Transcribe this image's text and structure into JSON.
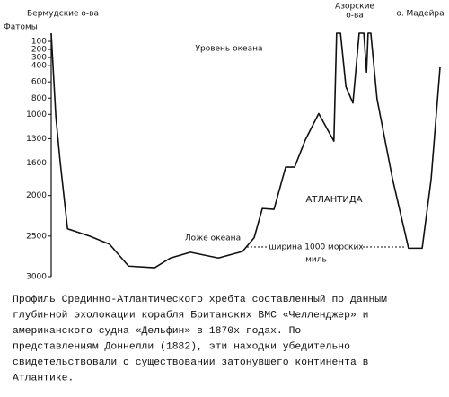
{
  "chart_data": {
    "type": "line",
    "y_label": "Фатомы",
    "top_labels": [
      "Бермудские о-ва",
      [
        "Азорские",
        "о-ва"
      ],
      "о. Мадейра"
    ],
    "annotations": {
      "sea_level": "Уровень океана",
      "ocean_floor": "Ложе океана",
      "atlantis": "АТЛАНТИДА",
      "width": [
        "ширина 1000 морских",
        "миль"
      ]
    },
    "x": [
      0,
      1.2,
      2.3,
      4.2,
      9.9,
      15.0,
      19.9,
      26.6,
      30.7,
      35.8,
      43.0,
      49.2,
      52.2,
      54.3,
      57.3,
      60.3,
      62.6,
      65.4,
      68.8,
      72.7,
      73.4,
      74.4,
      75.8,
      77.6,
      79.2,
      80.4,
      81.1,
      81.5,
      82.2,
      83.8,
      87.8,
      91.9,
      95.4,
      97.7,
      100
    ],
    "values": [
      0,
      1030,
      1580,
      2410,
      2500,
      2600,
      2870,
      2890,
      2770,
      2700,
      2770,
      2690,
      2520,
      2160,
      2170,
      1650,
      1650,
      1310,
      990,
      1330,
      0,
      0,
      660,
      860,
      0,
      0,
      480,
      0,
      0,
      810,
      1800,
      2650,
      2650,
      1800,
      420
    ],
    "color": "#111111",
    "xlim": [
      0,
      100
    ],
    "ylim": [
      0,
      3000
    ],
    "yticks": [
      100,
      200,
      300,
      400,
      600,
      800,
      1000,
      1300,
      1600,
      2000,
      2500,
      3000
    ],
    "caption": [
      "Профиль Срединно-Атлантического хребта составленный по данным",
      "глубинной эхолокации корабля Британских ВМС «Челленджер» и",
      "американского судна «Дельфин» в 1870х годах. По",
      "представлениям Доннелли (1882), эти находки убедительно",
      "свидетельствовали о существовании затонувшего континента в",
      "Атлантике."
    ]
  }
}
